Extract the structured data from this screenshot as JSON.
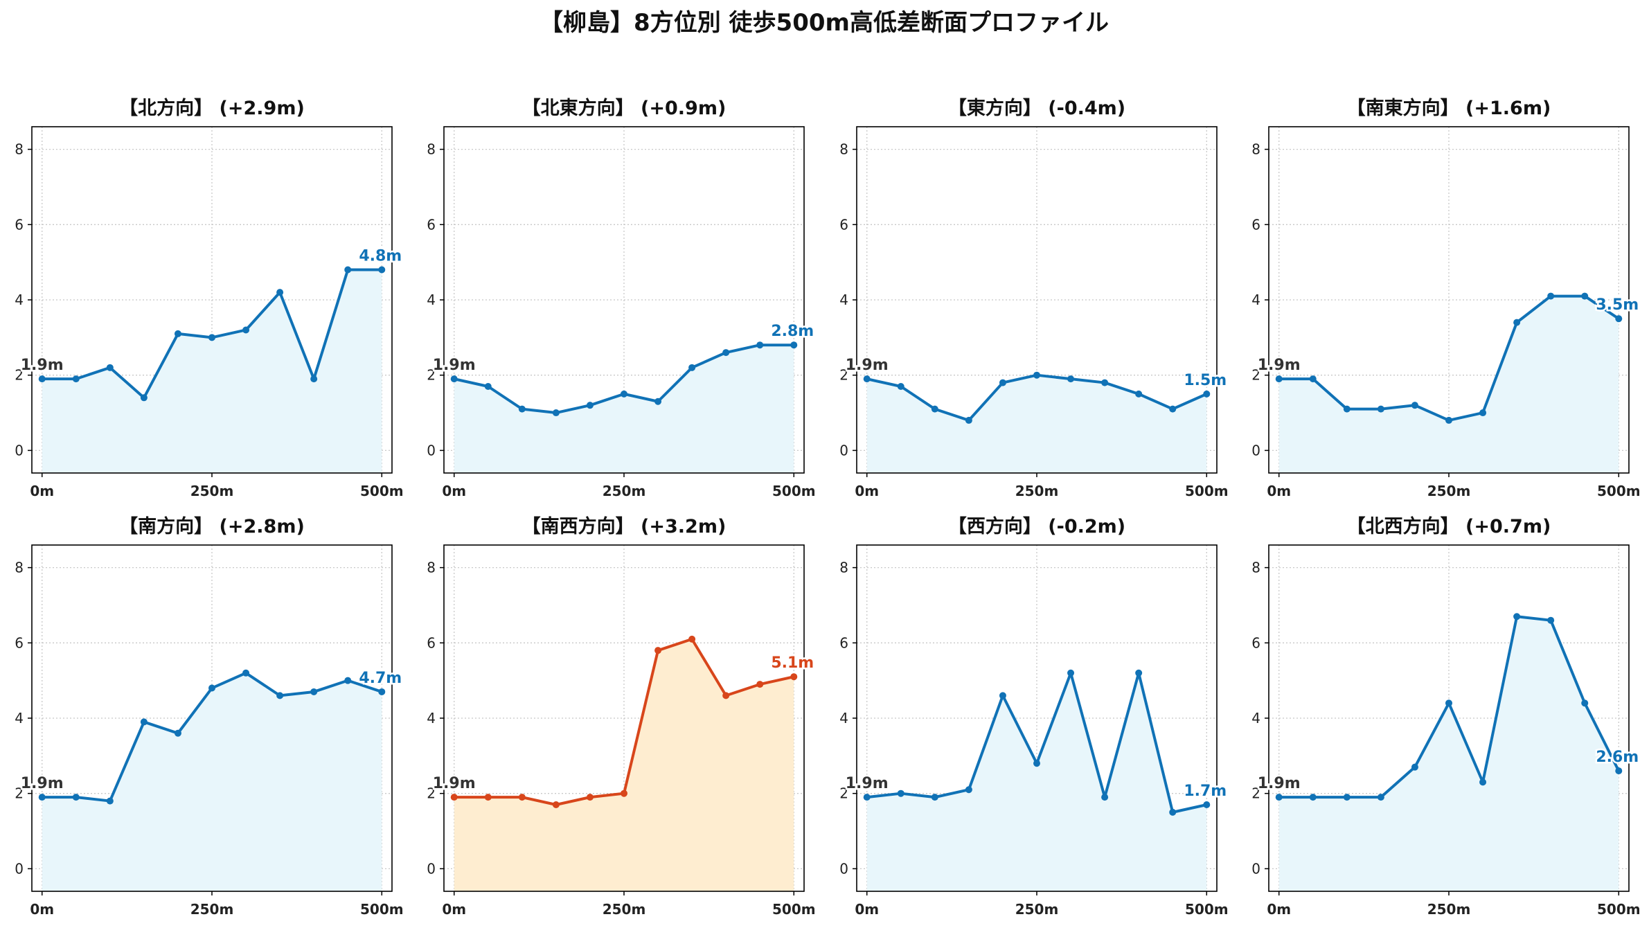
{
  "title": "【柳島】8方位別 徒歩500m高低差断面プロファイル",
  "colors": {
    "normal_line": "#1072B6",
    "normal_fill": "#E8F6FB",
    "highlight_line": "#D8461B",
    "highlight_fill": "#FEEDD0",
    "start_label": "#333333",
    "grid": "#C8C8C8"
  },
  "chart_data": [
    {
      "type": "line",
      "title": "【北方向】 (+2.9m)",
      "highlight": false,
      "x": [
        0,
        50,
        100,
        150,
        200,
        250,
        300,
        350,
        400,
        450,
        500
      ],
      "y": [
        1.9,
        1.9,
        2.2,
        1.4,
        3.1,
        3.0,
        3.2,
        4.2,
        1.9,
        4.8,
        4.8
      ],
      "start_label": "1.9m",
      "end_label": "4.8m"
    },
    {
      "type": "line",
      "title": "【北東方向】 (+0.9m)",
      "highlight": false,
      "x": [
        0,
        50,
        100,
        150,
        200,
        250,
        300,
        350,
        400,
        450,
        500
      ],
      "y": [
        1.9,
        1.7,
        1.1,
        1.0,
        1.2,
        1.5,
        1.3,
        2.2,
        2.6,
        2.8,
        2.8
      ],
      "start_label": "1.9m",
      "end_label": "2.8m"
    },
    {
      "type": "line",
      "title": "【東方向】 (-0.4m)",
      "highlight": false,
      "x": [
        0,
        50,
        100,
        150,
        200,
        250,
        300,
        350,
        400,
        450,
        500
      ],
      "y": [
        1.9,
        1.7,
        1.1,
        0.8,
        1.8,
        2.0,
        1.9,
        1.8,
        1.5,
        1.1,
        1.5
      ],
      "start_label": "1.9m",
      "end_label": "1.5m"
    },
    {
      "type": "line",
      "title": "【南東方向】 (+1.6m)",
      "highlight": false,
      "x": [
        0,
        50,
        100,
        150,
        200,
        250,
        300,
        350,
        400,
        450,
        500
      ],
      "y": [
        1.9,
        1.9,
        1.1,
        1.1,
        1.2,
        0.8,
        1.0,
        3.4,
        4.1,
        4.1,
        3.5
      ],
      "start_label": "1.9m",
      "end_label": "3.5m"
    },
    {
      "type": "line",
      "title": "【南方向】 (+2.8m)",
      "highlight": false,
      "x": [
        0,
        50,
        100,
        150,
        200,
        250,
        300,
        350,
        400,
        450,
        500
      ],
      "y": [
        1.9,
        1.9,
        1.8,
        3.9,
        3.6,
        4.8,
        5.2,
        4.6,
        4.7,
        5.0,
        4.7
      ],
      "start_label": "1.9m",
      "end_label": "4.7m"
    },
    {
      "type": "line",
      "title": "【南西方向】 (+3.2m)",
      "highlight": true,
      "x": [
        0,
        50,
        100,
        150,
        200,
        250,
        300,
        350,
        400,
        450,
        500
      ],
      "y": [
        1.9,
        1.9,
        1.9,
        1.7,
        1.9,
        2.0,
        5.8,
        6.1,
        4.6,
        4.9,
        5.1
      ],
      "start_label": "1.9m",
      "end_label": "5.1m"
    },
    {
      "type": "line",
      "title": "【西方向】 (-0.2m)",
      "highlight": false,
      "x": [
        0,
        50,
        100,
        150,
        200,
        250,
        300,
        350,
        400,
        450,
        500
      ],
      "y": [
        1.9,
        2.0,
        1.9,
        2.1,
        4.6,
        2.8,
        5.2,
        1.9,
        5.2,
        1.5,
        1.7
      ],
      "start_label": "1.9m",
      "end_label": "1.7m"
    },
    {
      "type": "line",
      "title": "【北西方向】 (+0.7m)",
      "highlight": false,
      "x": [
        0,
        50,
        100,
        150,
        200,
        250,
        300,
        350,
        400,
        450,
        500
      ],
      "y": [
        1.9,
        1.9,
        1.9,
        1.9,
        2.7,
        4.4,
        2.3,
        6.7,
        6.6,
        4.4,
        2.6
      ],
      "start_label": "1.9m",
      "end_label": "2.6m"
    }
  ],
  "y_ticks": [
    0,
    2,
    4,
    6,
    8
  ],
  "y_range": [
    -0.6,
    8.6
  ],
  "x_range": [
    -15,
    515
  ],
  "x_ticks": [
    0,
    250,
    500
  ],
  "x_tick_labels": [
    "0m",
    "250m",
    "500m"
  ],
  "grid": true
}
